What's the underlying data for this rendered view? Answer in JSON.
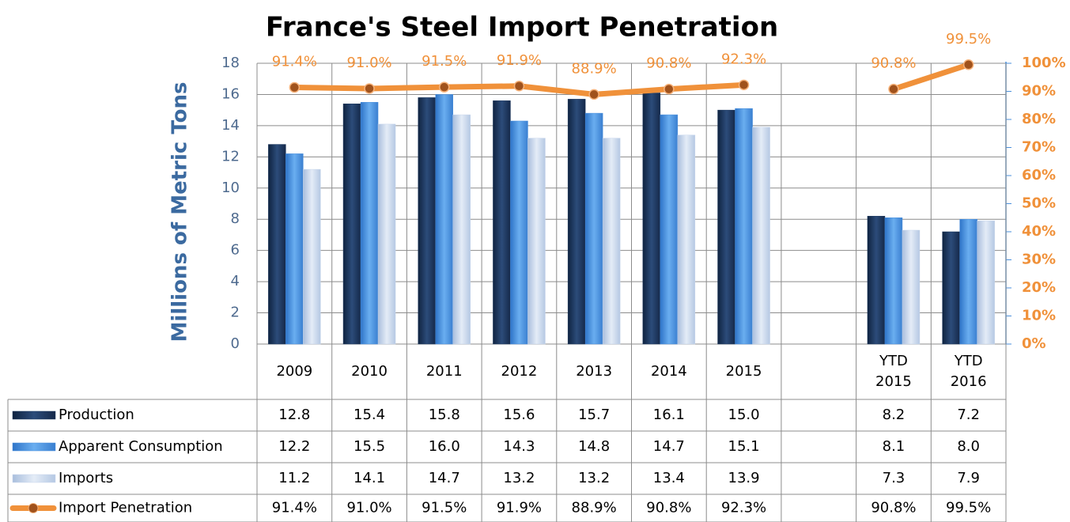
{
  "chart_data": {
    "type": "bar",
    "title": "France's Steel Import Penetration",
    "y_label": "Millions of Metric Tons",
    "categories": [
      "2009",
      "2010",
      "2011",
      "2012",
      "2013",
      "2014",
      "2015",
      null,
      "YTD 2015",
      "YTD 2016"
    ],
    "series": [
      {
        "name": "Production",
        "color": "#1f3a60",
        "values": [
          12.8,
          15.4,
          15.8,
          15.6,
          15.7,
          16.1,
          15.0,
          null,
          8.2,
          7.2
        ],
        "value_labels": [
          "12.8",
          "15.4",
          "15.8",
          "15.6",
          "15.7",
          "16.1",
          "15.0",
          null,
          "8.2",
          "7.2"
        ]
      },
      {
        "name": "Apparent Consumption",
        "color": "#4a8fdc",
        "values": [
          12.2,
          15.5,
          16.0,
          14.3,
          14.8,
          14.7,
          15.1,
          null,
          8.1,
          8.0
        ],
        "value_labels": [
          "12.2",
          "15.5",
          "16.0",
          "14.3",
          "14.8",
          "14.7",
          "15.1",
          null,
          "8.1",
          "8.0"
        ]
      },
      {
        "name": "Imports",
        "color": "#c7d6ec",
        "values": [
          11.2,
          14.1,
          14.7,
          13.2,
          13.2,
          13.4,
          13.9,
          null,
          7.3,
          7.9
        ],
        "value_labels": [
          "11.2",
          "14.1",
          "14.7",
          "13.2",
          "13.2",
          "13.4",
          "13.9",
          null,
          "7.3",
          "7.9"
        ]
      },
      {
        "name": "Import Penetration",
        "type": "line",
        "axis": "y2",
        "color": "#f0913a",
        "values": [
          91.4,
          91.0,
          91.5,
          91.9,
          88.9,
          90.8,
          92.3,
          null,
          90.8,
          99.5
        ],
        "value_labels": [
          "91.4%",
          "91.0%",
          "91.5%",
          "91.9%",
          "88.9%",
          "90.8%",
          "92.3%",
          null,
          "90.8%",
          "99.5%"
        ]
      }
    ],
    "ylim": [
      0,
      18
    ],
    "yticks": [
      0,
      2,
      4,
      6,
      8,
      10,
      12,
      14,
      16,
      18
    ],
    "y2lim": [
      0,
      100
    ],
    "y2ticks": [
      {
        "value": 0,
        "label": "0%"
      },
      {
        "value": 10,
        "label": "10%"
      },
      {
        "value": 20,
        "label": "20%"
      },
      {
        "value": 30,
        "label": "30%"
      },
      {
        "value": 40,
        "label": "40%"
      },
      {
        "value": 50,
        "label": "50%"
      },
      {
        "value": 60,
        "label": "60%"
      },
      {
        "value": 70,
        "label": "70%"
      },
      {
        "value": 80,
        "label": "80%"
      },
      {
        "value": 90,
        "label": "90%"
      },
      {
        "value": 100,
        "label": "100%"
      }
    ],
    "grid": true
  }
}
